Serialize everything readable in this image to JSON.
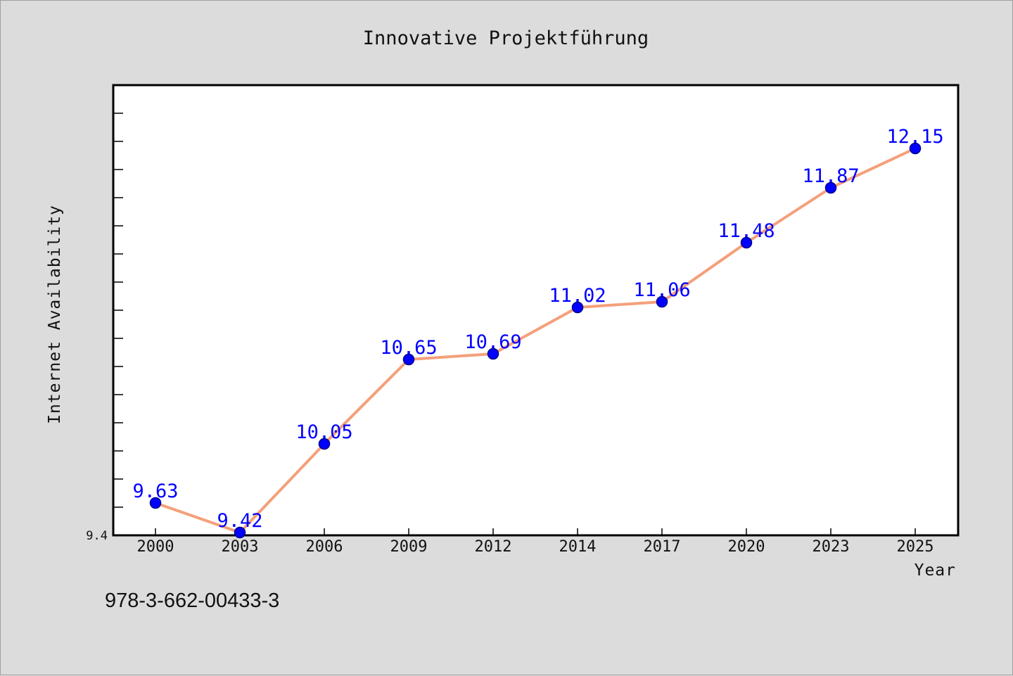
{
  "footer": {
    "isbn": "978-3-662-00433-3"
  },
  "colors": {
    "line": "#f4a07a",
    "marker": "#0000ff",
    "marker_edge": "#00008b",
    "label": "#0000ff",
    "background": "#dcdcdc",
    "plot_area": "#ffffff"
  },
  "chart_data": {
    "type": "line",
    "title": "Innovative Projektführung",
    "xlabel": "Year",
    "ylabel": "Internet Availability",
    "categories": [
      "2000",
      "2003",
      "2006",
      "2009",
      "2012",
      "2014",
      "2017",
      "2020",
      "2023",
      "2025"
    ],
    "series": [
      {
        "values": [
          9.63,
          9.42,
          10.05,
          10.65,
          10.69,
          11.02,
          11.06,
          11.48,
          11.87,
          12.15
        ]
      }
    ],
    "data_labels": [
      "9.63",
      "9.42",
      "10.05",
      "10.65",
      "10.69",
      "11.02",
      "11.06",
      "11.48",
      "11.87",
      "12.15"
    ],
    "ylim": [
      9.4,
      12.6
    ],
    "ytick_labels": [
      "9.4"
    ],
    "grid": false,
    "legend": "none"
  }
}
